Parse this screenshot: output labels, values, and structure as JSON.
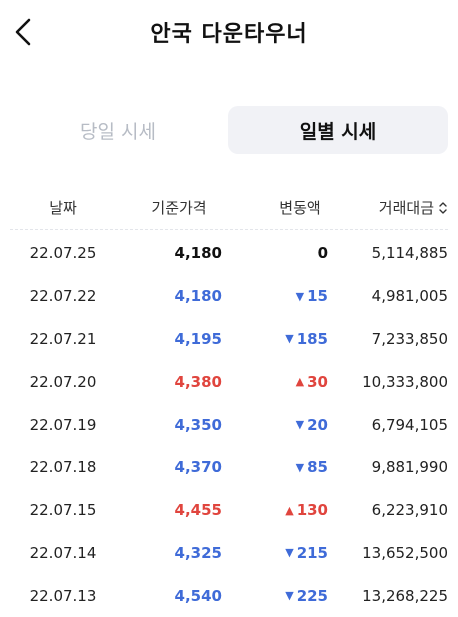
{
  "header": {
    "title": "안국 다운타우너"
  },
  "tabs": [
    {
      "label": "당일 시세",
      "active": false
    },
    {
      "label": "일별 시세",
      "active": true
    }
  ],
  "table": {
    "columns": [
      "날짜",
      "기준가격",
      "변동액",
      "거래대금"
    ],
    "rows": [
      {
        "date": "22.07.25",
        "price": "4,180",
        "dir": "none",
        "change": "0",
        "volume": "5,114,885"
      },
      {
        "date": "22.07.22",
        "price": "4,180",
        "dir": "down",
        "change": "15",
        "volume": "4,981,005"
      },
      {
        "date": "22.07.21",
        "price": "4,195",
        "dir": "down",
        "change": "185",
        "volume": "7,233,850"
      },
      {
        "date": "22.07.20",
        "price": "4,380",
        "dir": "up",
        "change": "30",
        "volume": "10,333,800"
      },
      {
        "date": "22.07.19",
        "price": "4,350",
        "dir": "down",
        "change": "20",
        "volume": "6,794,105"
      },
      {
        "date": "22.07.18",
        "price": "4,370",
        "dir": "down",
        "change": "85",
        "volume": "9,881,990"
      },
      {
        "date": "22.07.15",
        "price": "4,455",
        "dir": "up",
        "change": "130",
        "volume": "6,223,910"
      },
      {
        "date": "22.07.14",
        "price": "4,325",
        "dir": "down",
        "change": "215",
        "volume": "13,652,500"
      },
      {
        "date": "22.07.13",
        "price": "4,540",
        "dir": "down",
        "change": "225",
        "volume": "13,268,225"
      }
    ]
  },
  "icons": {
    "back": "chevron-left-icon",
    "sort": "sort-updown-icon"
  },
  "colors": {
    "down": "#3f6bd8",
    "up": "#e0453e",
    "neutral": "#111111",
    "tab_active_bg": "#f1f2f6"
  }
}
